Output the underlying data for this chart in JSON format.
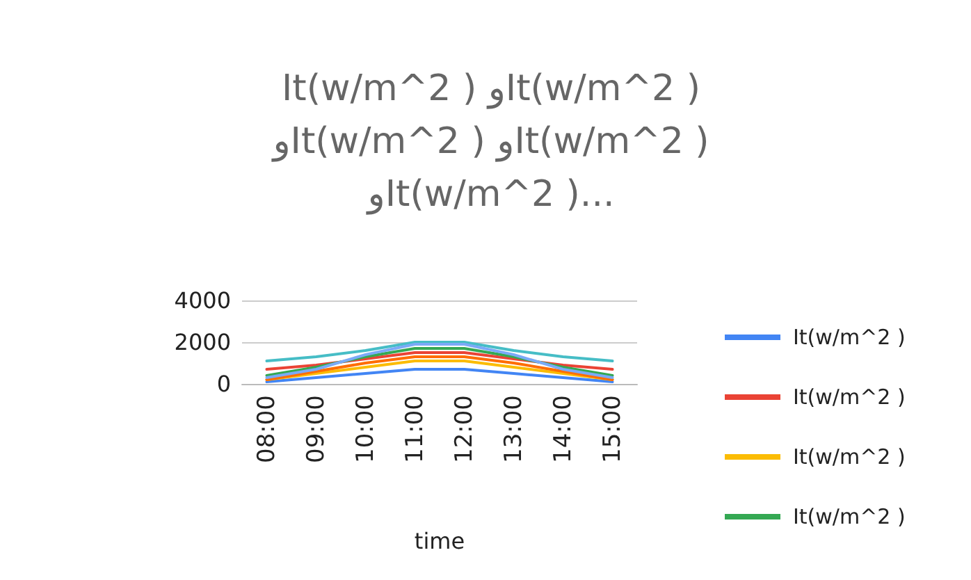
{
  "chart_data": {
    "type": "line",
    "title": "It(w/m^2 ) وIt(w/m^2 )\nوIt(w/m^2 ) وIt(w/m^2 )\nوIt(w/m^2 )...",
    "xlabel": "time",
    "categories": [
      "08:00",
      "09:00",
      "10:00",
      "11:00",
      "12:00",
      "13:00",
      "14:00",
      "15:00"
    ],
    "series": [
      {
        "name": "It(w/m^2 )",
        "color": "#4285f4",
        "values": [
          100,
          300,
          500,
          700,
          700,
          500,
          300,
          100
        ]
      },
      {
        "name": "It(w/m^2 )",
        "color": "#ea4335",
        "values": [
          700,
          900,
          1200,
          1500,
          1500,
          1200,
          900,
          700
        ]
      },
      {
        "name": "It(w/m^2 )",
        "color": "#fbbc04",
        "values": [
          200,
          500,
          800,
          1100,
          1100,
          800,
          500,
          200
        ]
      },
      {
        "name": "It(w/m^2 )",
        "color": "#34a853",
        "values": [
          400,
          800,
          1300,
          1700,
          1700,
          1300,
          800,
          400
        ]
      },
      {
        "color": "#ff6d01",
        "values": [
          200,
          600,
          1000,
          1300,
          1300,
          1000,
          600,
          200
        ]
      },
      {
        "color": "#46bdc6",
        "values": [
          1100,
          1300,
          1600,
          2000,
          2000,
          1600,
          1300,
          1100
        ]
      },
      {
        "color": "#7baaf7",
        "values": [
          300,
          700,
          1400,
          1900,
          1900,
          1400,
          700,
          300
        ]
      }
    ],
    "ylim": [
      0,
      4000
    ],
    "yticks": [
      {
        "value": 0,
        "label": "0"
      },
      {
        "value": 2000,
        "label": "2000"
      },
      {
        "value": 4000,
        "label": "4000"
      }
    ],
    "grid": "y",
    "legend": "right",
    "marker": "none",
    "line_style": "solid"
  }
}
